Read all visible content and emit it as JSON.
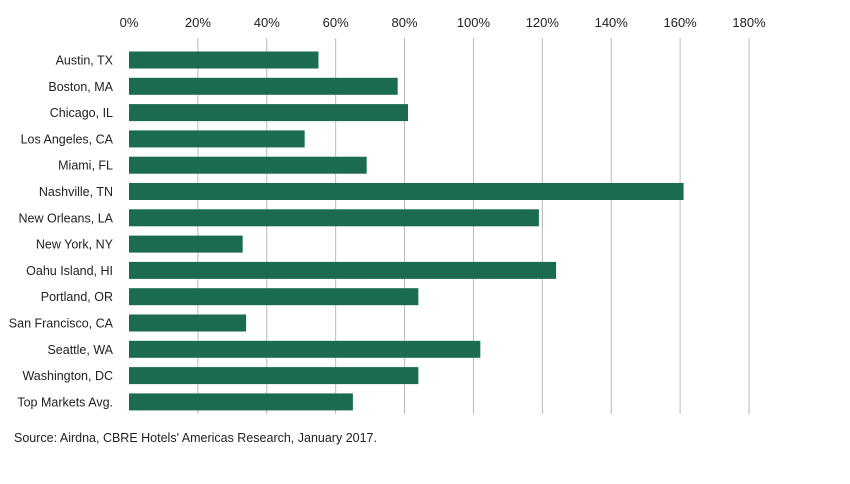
{
  "chart_data": {
    "type": "bar",
    "orientation": "horizontal",
    "categories": [
      "Austin, TX",
      "Boston, MA",
      "Chicago, IL",
      "Los Angeles, CA",
      "Miami, FL",
      "Nashville, TN",
      "New Orleans, LA",
      "New York, NY",
      "Oahu Island, HI",
      "Portland, OR",
      "San Francisco, CA",
      "Seattle, WA",
      "Washington, DC",
      "Top Markets Avg."
    ],
    "values": [
      55,
      78,
      81,
      51,
      69,
      161,
      119,
      33,
      124,
      84,
      34,
      102,
      84,
      65
    ],
    "xlim": [
      0,
      180
    ],
    "xticks": [
      0,
      20,
      40,
      60,
      80,
      100,
      120,
      140,
      160,
      180
    ],
    "tick_labels": [
      "0%",
      "20%",
      "40%",
      "60%",
      "80%",
      "100%",
      "120%",
      "140%",
      "160%",
      "180%"
    ],
    "title": "",
    "xlabel": "",
    "ylabel": "",
    "grid": "vertical",
    "bar_color": "#1a6b4f",
    "grid_color": "#b9b9b9"
  },
  "source": "Source: Airdna, CBRE Hotels' Americas Research, January 2017."
}
